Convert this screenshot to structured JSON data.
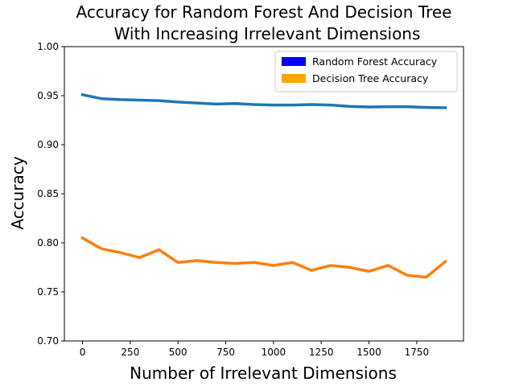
{
  "chart_data": {
    "type": "line",
    "title_line1": "Accuracy for Random Forest And Decision Tree",
    "title_line2": "With Increasing Irrelevant Dimensions",
    "xlabel": "Number of Irrelevant Dimensions",
    "ylabel": "Accuracy",
    "xlim": [
      -95,
      1995
    ],
    "ylim": [
      0.7,
      1.0
    ],
    "xticks": [
      0,
      250,
      500,
      750,
      1000,
      1250,
      1500,
      1750
    ],
    "yticks": [
      0.7,
      0.75,
      0.8,
      0.85,
      0.9,
      0.95,
      1.0
    ],
    "ytick_labels": [
      "0.70",
      "0.75",
      "0.80",
      "0.85",
      "0.90",
      "0.95",
      "1.00"
    ],
    "grid": false,
    "legend_position": "top-right",
    "legend": [
      {
        "label": "Random Forest Accuracy",
        "color": "#0000ff"
      },
      {
        "label": "Decision Tree Accuracy",
        "color": "#ffa500"
      }
    ],
    "x": [
      0,
      100,
      200,
      300,
      400,
      500,
      600,
      700,
      800,
      900,
      1000,
      1100,
      1200,
      1300,
      1400,
      1500,
      1600,
      1700,
      1800,
      1900
    ],
    "series": [
      {
        "color": "#1f77b4",
        "values": [
          0.951,
          0.947,
          0.946,
          0.9455,
          0.945,
          0.9435,
          0.9425,
          0.9415,
          0.942,
          0.941,
          0.9405,
          0.9405,
          0.941,
          0.9405,
          0.939,
          0.9385,
          0.9388,
          0.9388,
          0.938,
          0.9377
        ]
      },
      {
        "color": "#ff7f0e",
        "values": [
          0.805,
          0.794,
          0.79,
          0.785,
          0.793,
          0.78,
          0.782,
          0.78,
          0.779,
          0.78,
          0.777,
          0.78,
          0.772,
          0.777,
          0.775,
          0.771,
          0.777,
          0.767,
          0.765,
          0.781
        ]
      }
    ]
  }
}
